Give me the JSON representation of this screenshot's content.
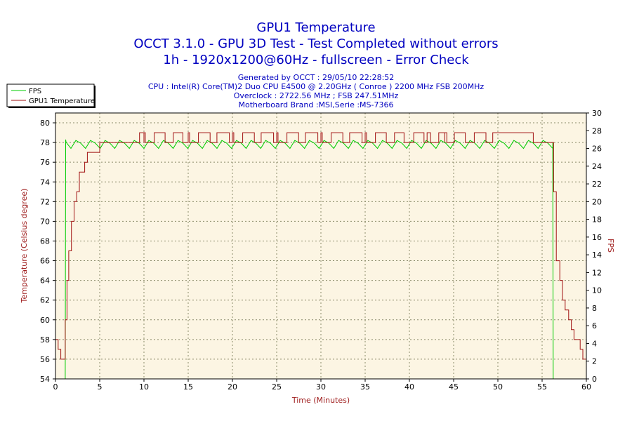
{
  "chart_data": {
    "type": "line",
    "title": "GPU1 Temperature",
    "subtitle_lines": [
      "OCCT 3.1.0 - GPU 3D Test - Test Completed without errors",
      "1h - 1920x1200@60Hz - fullscreen - Error Check"
    ],
    "info_lines": [
      "Generated by OCCT : 29/05/10 22:28:52",
      "CPU : Intel(R) Core(TM)2 Duo CPU E4500 @ 2.20GHz ( Conroe ) 2200 MHz FSB 200MHz",
      "Overclock : 2722.56 MHz ; FSB 247.51MHz",
      "Motherboard Brand :MSI,Serie :MS-7366"
    ],
    "xlabel": "Time (Minutes)",
    "ylabel_left": "Temperature (Celsius degree)",
    "ylabel_right": "FPS",
    "xlim": [
      0,
      60
    ],
    "ylim_left": [
      54,
      81
    ],
    "ylim_right": [
      0,
      30
    ],
    "x_ticks": [
      "0",
      "5",
      "10",
      "15",
      "20",
      "25",
      "30",
      "35",
      "40",
      "45",
      "50",
      "55",
      "60"
    ],
    "y_ticks_left": [
      "54",
      "56",
      "58",
      "60",
      "62",
      "64",
      "66",
      "68",
      "70",
      "72",
      "74",
      "76",
      "78",
      "80"
    ],
    "y_ticks_right": [
      "0",
      "2",
      "4",
      "6",
      "8",
      "10",
      "12",
      "14",
      "16",
      "18",
      "20",
      "22",
      "24",
      "26",
      "28",
      "30"
    ],
    "grid": true,
    "legend_position": "top-left",
    "series": [
      {
        "name": "FPS",
        "axis": "right",
        "color": "#00cc00",
        "x": [
          0,
          1.1,
          1.15,
          1.2,
          56.2,
          56.25,
          60
        ],
        "y": [
          0,
          0,
          27,
          26.7,
          26.7,
          0,
          0
        ]
      },
      {
        "name": "GPU1 Temperature",
        "axis": "left",
        "color": "#a01010",
        "x": [
          0,
          0.3,
          0.6,
          0.9,
          1.0,
          1.1,
          1.3,
          1.5,
          1.8,
          2.1,
          2.4,
          2.7,
          3.0,
          3.3,
          3.6,
          4.0,
          4.3,
          4.6,
          5.0,
          5.5,
          6.0,
          7.0,
          8.0,
          9.0,
          9.5,
          10.0,
          12.0,
          15.0,
          20.0,
          25.0,
          30.0,
          35.0,
          37.0,
          42.0,
          44.0,
          50.0,
          54.0,
          56.0,
          56.3,
          56.6,
          57.0,
          57.3,
          57.6,
          58.0,
          58.3,
          58.6,
          59.0,
          59.3,
          59.6,
          60.0
        ],
        "y": [
          58,
          57,
          56,
          56,
          56,
          60,
          64,
          67,
          70,
          72,
          73,
          75,
          75,
          76,
          77,
          77,
          77,
          77,
          78,
          78,
          78,
          78,
          78,
          78,
          78,
          79,
          79,
          79,
          79,
          79,
          79,
          79,
          79,
          78,
          79,
          79,
          78,
          78,
          73,
          66,
          64,
          62,
          61,
          60,
          59,
          58,
          58,
          57,
          56,
          55
        ],
        "fluctuation_range_minutes": [
          9.5,
          51.5
        ],
        "fluctuation_values": [
          78,
          79
        ]
      }
    ]
  }
}
